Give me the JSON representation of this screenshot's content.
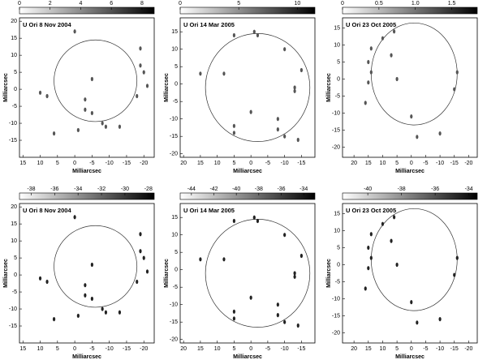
{
  "chart_data": [
    {
      "type": "scatter",
      "title": "U Ori  8 Nov 2004",
      "x_label": "Milliarcsec",
      "y_label": "Milliarcsec",
      "color": "#555555",
      "xlim": [
        16,
        -23
      ],
      "xticks": [
        15,
        10,
        5,
        0,
        -5,
        -10,
        -15,
        -20
      ],
      "ylim": [
        -20,
        21
      ],
      "yticks": [
        20,
        15,
        10,
        5,
        0,
        -5,
        -10,
        -15
      ],
      "colorbar": {
        "lim": [
          0,
          8.8
        ],
        "ticks": [
          0,
          2,
          4,
          6,
          8
        ]
      },
      "x": [
        -3,
        -3,
        -8,
        -9,
        -13,
        -20,
        -19,
        -21,
        -18,
        -19,
        0,
        10,
        8,
        -5,
        -1,
        6,
        -5
      ],
      "y": [
        -3,
        -6,
        -10,
        -11,
        -11,
        5,
        7,
        1,
        -2,
        12,
        17,
        -1,
        -2,
        3,
        -12,
        -13,
        -7
      ]
    },
    {
      "type": "scatter",
      "title": "U Ori 14 Mar 2005",
      "x_label": "Milliarcsec",
      "y_label": "Milliarcsec",
      "color": "#555555",
      "xlim": [
        21,
        -19
      ],
      "xticks": [
        20,
        15,
        10,
        5,
        0,
        -5,
        -10,
        -15
      ],
      "ylim": [
        -21,
        19
      ],
      "yticks": [
        15,
        10,
        5,
        0,
        -5,
        -10,
        -15,
        -20
      ],
      "colorbar": {
        "lim": [
          0,
          11.5
        ],
        "ticks": [
          0,
          5,
          10
        ]
      },
      "x": [
        -1,
        -2,
        5,
        8,
        15,
        -15,
        -13,
        -13,
        -8,
        -8,
        -10,
        5,
        5,
        0,
        -10,
        -14
      ],
      "y": [
        15,
        14,
        14,
        3,
        3,
        4,
        -1,
        -2,
        -10,
        -13,
        -15,
        -12,
        -14,
        -8,
        10,
        -16
      ]
    },
    {
      "type": "scatter",
      "title": "U Ori 23 Oct 2005",
      "x_label": "Milliarcsec",
      "y_label": "Milliarcsec",
      "color": "#555555",
      "xlim": [
        24,
        -23
      ],
      "xticks": [
        20,
        15,
        10,
        5,
        0,
        -5,
        -10,
        -15,
        -20
      ],
      "ylim": [
        -23,
        18
      ],
      "yticks": [
        15,
        10,
        5,
        0,
        -5,
        -10,
        -15,
        -20
      ],
      "colorbar": {
        "lim": [
          0,
          1.85
        ],
        "ticks": [
          0,
          0.5,
          {
            "value": 1,
            "label": "1.0"
          },
          1.5
        ]
      },
      "x": [
        15,
        14,
        10,
        6,
        7,
        15,
        14,
        5,
        -15,
        -16,
        -2,
        -10,
        0,
        16
      ],
      "y": [
        5,
        9,
        12,
        14,
        7,
        -1,
        2,
        0,
        -3,
        2,
        -17,
        -16,
        -11,
        -7
      ]
    },
    {
      "type": "scatter",
      "title": "U Ori  8 Nov 2004",
      "x_label": "Milliarcsec",
      "y_label": "Milliarcsec",
      "color": "#222222",
      "xlim": [
        16,
        -23
      ],
      "xticks": [
        15,
        10,
        5,
        0,
        -5,
        -10,
        -15,
        -20
      ],
      "ylim": [
        -20,
        21
      ],
      "yticks": [
        20,
        15,
        10,
        5,
        0,
        -5,
        -10,
        -15
      ],
      "colorbar": {
        "lim": [
          -39,
          -27.5
        ],
        "ticks": [
          -38,
          -36,
          -34,
          -32,
          -30,
          -28
        ]
      },
      "x": [
        -3,
        -3,
        -8,
        -9,
        -13,
        -20,
        -19,
        -21,
        -18,
        -19,
        0,
        10,
        8,
        -5,
        -1,
        6,
        -5
      ],
      "y": [
        -3,
        -6,
        -10,
        -11,
        -11,
        5,
        7,
        1,
        -2,
        12,
        17,
        -1,
        -2,
        3,
        -12,
        -13,
        -7
      ]
    },
    {
      "type": "scatter",
      "title": "U Ori 14 Mar 2005",
      "x_label": "Milliarcsec",
      "y_label": "Milliarcsec",
      "color": "#222222",
      "xlim": [
        21,
        -19
      ],
      "xticks": [
        20,
        15,
        10,
        5,
        0,
        -5,
        -10,
        -15
      ],
      "ylim": [
        -21,
        19
      ],
      "yticks": [
        15,
        10,
        5,
        0,
        -5,
        -10,
        -15,
        -20
      ],
      "colorbar": {
        "lim": [
          -45,
          -33
        ],
        "ticks": [
          -44,
          -42,
          -40,
          -38,
          -36,
          -34
        ]
      },
      "x": [
        -1,
        -2,
        5,
        8,
        15,
        -15,
        -13,
        -13,
        -8,
        -8,
        -10,
        5,
        5,
        0,
        -10,
        -14
      ],
      "y": [
        15,
        14,
        14,
        3,
        3,
        4,
        -1,
        -2,
        -10,
        -13,
        -15,
        -12,
        -14,
        -8,
        10,
        -16
      ]
    },
    {
      "type": "scatter",
      "title": "U Ori 23 Oct 2005",
      "x_label": "Milliarcsec",
      "y_label": "Milliarcsec",
      "color": "#222222",
      "xlim": [
        24,
        -23
      ],
      "xticks": [
        20,
        15,
        10,
        5,
        0,
        -5,
        -10,
        -15,
        -20
      ],
      "ylim": [
        -23,
        18
      ],
      "yticks": [
        15,
        10,
        5,
        0,
        -5,
        -10,
        -15,
        -20
      ],
      "colorbar": {
        "lim": [
          -41.5,
          -33.5
        ],
        "ticks": [
          -40,
          -38,
          -36,
          -34
        ]
      },
      "x": [
        15,
        14,
        10,
        6,
        7,
        15,
        14,
        5,
        -15,
        -16,
        -2,
        -10,
        0,
        16
      ],
      "y": [
        5,
        9,
        12,
        14,
        7,
        -1,
        2,
        0,
        -3,
        2,
        -17,
        -16,
        -11,
        -7
      ]
    }
  ]
}
